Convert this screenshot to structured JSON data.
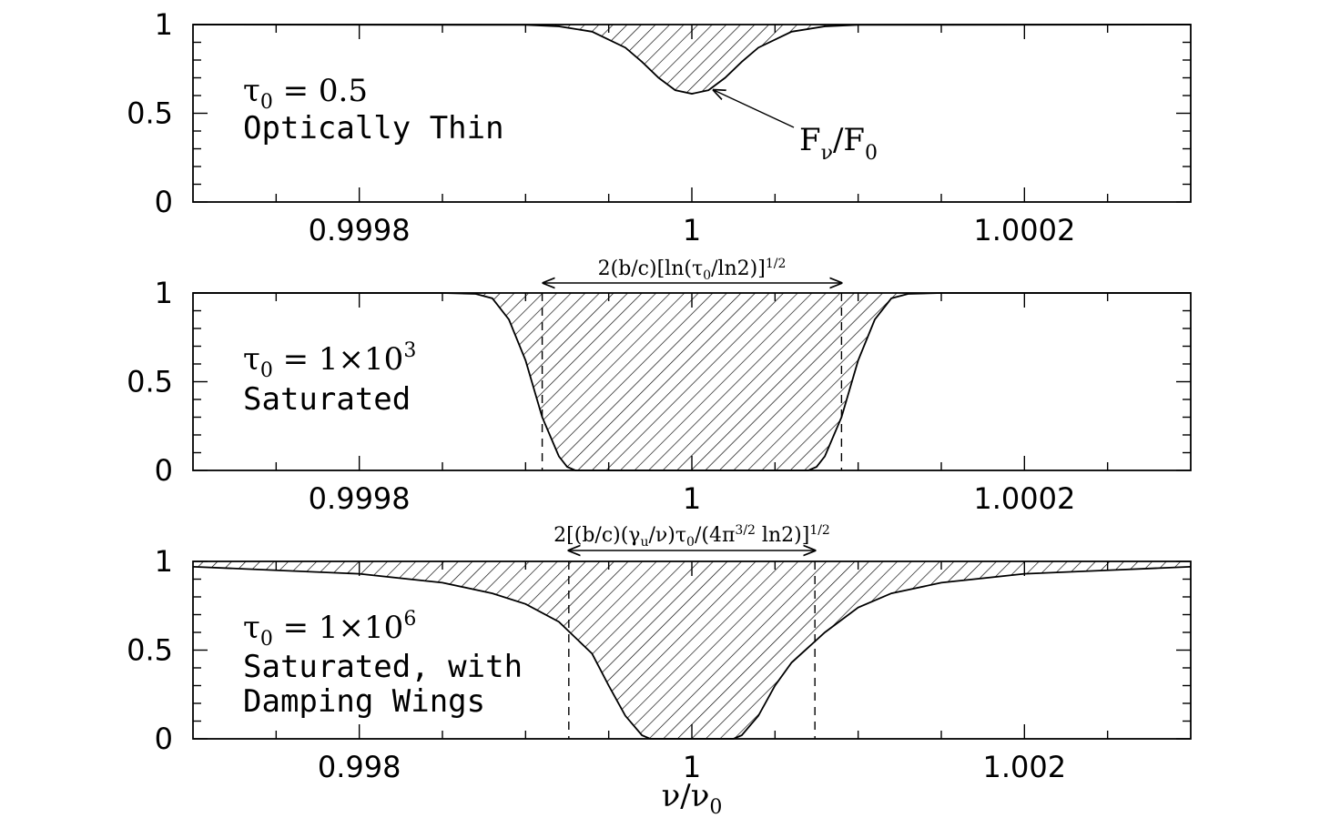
{
  "chart_data": [
    {
      "type": "area",
      "panel": "top",
      "tau0_label": "τ",
      "tau0_sub": "0",
      "tau0_value": " = 0.5",
      "regime": "Optically Thin",
      "annotation_main": "F",
      "annotation_sub1": "ν",
      "annotation_slash": "/F",
      "annotation_sub2": "0",
      "xlim": [
        0.9997,
        1.0003
      ],
      "ylim": [
        0,
        1
      ],
      "xticks": [
        0.9998,
        1,
        1.0002
      ],
      "xtick_labels": [
        "0.9998",
        "1",
        "1.0002"
      ],
      "yticks": [
        0,
        0.5,
        1
      ],
      "ytick_labels": [
        "0",
        "0.5",
        "1"
      ],
      "series": [
        {
          "x": [
            0.9997,
            0.9999,
            0.99992,
            0.99994,
            0.99996,
            0.99997,
            0.99998,
            0.99999,
            1.0,
            1.00001,
            1.00002,
            1.00003,
            1.00004,
            1.00006,
            1.00008,
            1.0001,
            1.0003
          ],
          "y": [
            1.0,
            0.998,
            0.99,
            0.96,
            0.87,
            0.79,
            0.7,
            0.63,
            0.61,
            0.63,
            0.7,
            0.79,
            0.87,
            0.96,
            0.99,
            0.998,
            1.0
          ]
        }
      ]
    },
    {
      "type": "area",
      "panel": "middle",
      "tau0_label": "τ",
      "tau0_sub": "0",
      "tau0_value": " = 1×10",
      "tau0_exp": "3",
      "regime": "Saturated",
      "width_label": "2(b/c)[ln(τ",
      "width_label_sub": "0",
      "width_label_end": "/ln2)]",
      "width_label_exp": "1/2",
      "xlim": [
        0.9997,
        1.0003
      ],
      "ylim": [
        0,
        1
      ],
      "xticks": [
        0.9998,
        1,
        1.0002
      ],
      "xtick_labels": [
        "0.9998",
        "1",
        "1.0002"
      ],
      "yticks": [
        0,
        0.5,
        1
      ],
      "ytick_labels": [
        "0",
        "0.5",
        "1"
      ],
      "dashed_x": [
        0.99991,
        1.00009
      ],
      "series": [
        {
          "x": [
            0.9997,
            0.99985,
            0.99987,
            0.99988,
            0.99989,
            0.9999,
            0.99991,
            0.99992,
            0.999925,
            0.99993,
            1.0,
            1.00007,
            1.000075,
            1.00008,
            1.00009,
            1.0001,
            1.00011,
            1.00012,
            1.00013,
            1.00015,
            1.0003
          ],
          "y": [
            1.0,
            1.0,
            0.995,
            0.97,
            0.85,
            0.62,
            0.3,
            0.08,
            0.02,
            0.0,
            0.0,
            0.0,
            0.02,
            0.08,
            0.3,
            0.62,
            0.85,
            0.97,
            0.995,
            1.0,
            1.0
          ]
        }
      ]
    },
    {
      "type": "area",
      "panel": "bottom",
      "tau0_label": "τ",
      "tau0_sub": "0",
      "tau0_value": " = 1×10",
      "tau0_exp": "6",
      "regime_line1": "Saturated, with",
      "regime_line2": "Damping Wings",
      "width_label_a": "2[(b/c)(γ",
      "width_label_sub1": "u",
      "width_label_b": "/ν)τ",
      "width_label_sub2": "0",
      "width_label_c": "/(4π",
      "width_label_exp1": "3/2",
      "width_label_d": " ln2)]",
      "width_label_exp2": "1/2",
      "xlabel_main": "ν/ν",
      "xlabel_sub": "0",
      "xlim": [
        0.997,
        1.003
      ],
      "ylim": [
        0,
        1
      ],
      "xticks": [
        0.998,
        1,
        1.002
      ],
      "xtick_labels": [
        "0.998",
        "1",
        "1.002"
      ],
      "yticks": [
        0,
        0.5,
        1
      ],
      "ytick_labels": [
        "0",
        "0.5",
        "1"
      ],
      "dashed_x": [
        0.99926,
        1.00074
      ],
      "series": [
        {
          "x": [
            0.997,
            0.9975,
            0.998,
            0.9985,
            0.9988,
            0.999,
            0.9992,
            0.9994,
            0.9995,
            0.9996,
            0.9997,
            0.99975,
            1.0,
            1.00025,
            1.0003,
            1.0004,
            1.0005,
            1.0006,
            1.0008,
            1.001,
            1.0012,
            1.0015,
            1.002,
            1.0025,
            1.003
          ],
          "y": [
            0.97,
            0.95,
            0.93,
            0.88,
            0.82,
            0.76,
            0.66,
            0.48,
            0.3,
            0.13,
            0.02,
            0.0,
            0.0,
            0.0,
            0.02,
            0.13,
            0.3,
            0.43,
            0.6,
            0.74,
            0.82,
            0.88,
            0.93,
            0.95,
            0.97
          ]
        }
      ]
    }
  ]
}
